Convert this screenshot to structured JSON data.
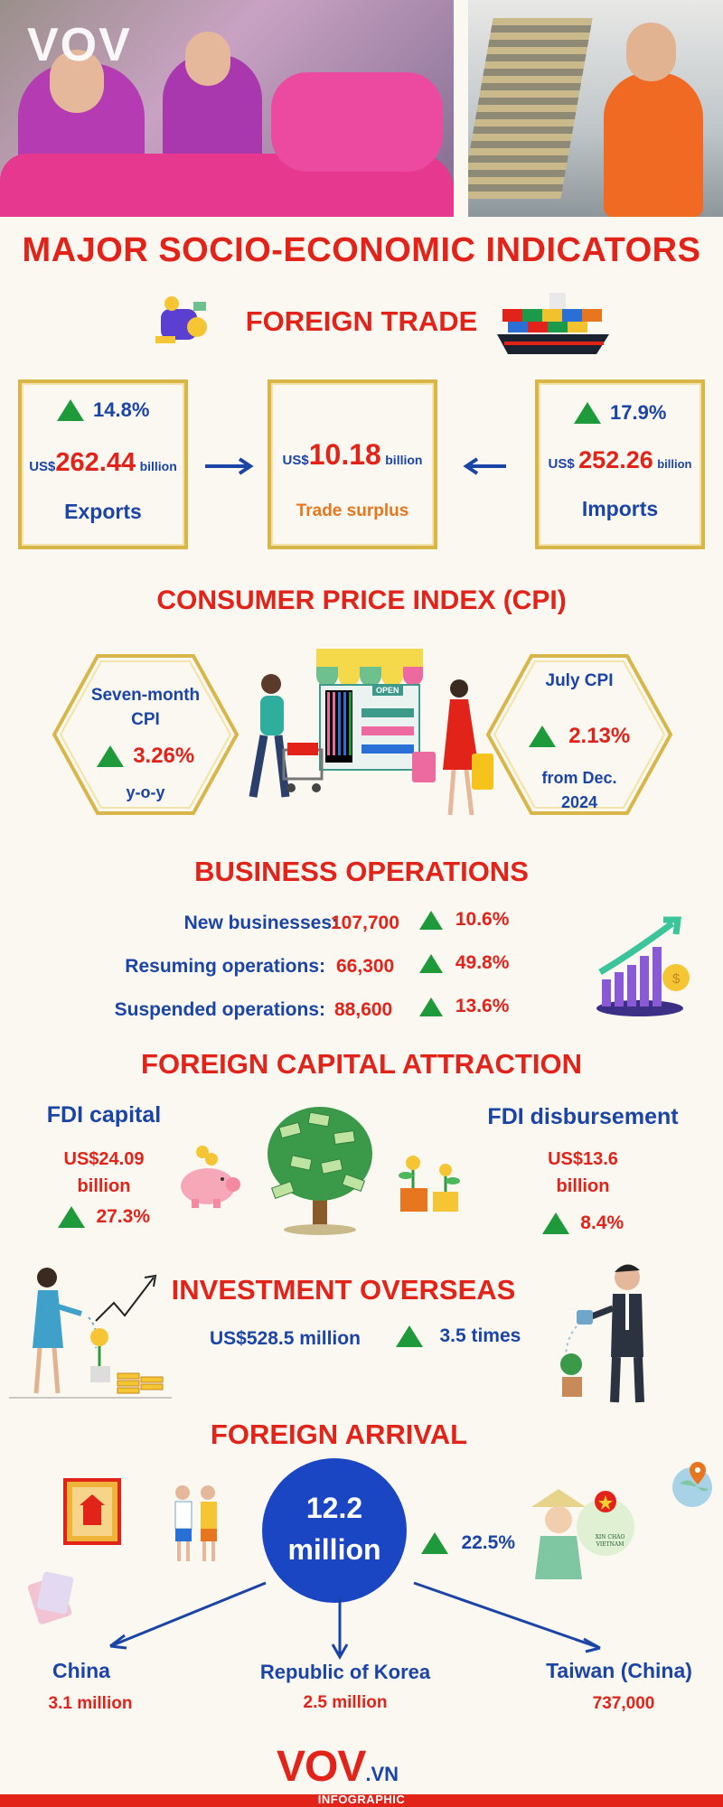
{
  "header": {
    "logo_text": "VOV",
    "title": "MAJOR SOCIO-ECONOMIC INDICATORS"
  },
  "foreign_trade": {
    "title": "FOREIGN TRADE",
    "exports": {
      "change": "14.8%",
      "prefix": "US$",
      "value": "262.44",
      "unit": "billion",
      "label": "Exports"
    },
    "surplus": {
      "prefix": "US$",
      "value": "10.18",
      "unit": "billion",
      "label": "Trade surplus"
    },
    "imports": {
      "change": "17.9%",
      "prefix": "US$",
      "value": "252.26",
      "unit": "billion",
      "label": "Imports"
    }
  },
  "cpi": {
    "title": "CONSUMER PRICE INDEX (CPI)",
    "seven_month": {
      "label_line1": "Seven-month",
      "label_line2": "CPI",
      "change": "3.26%",
      "suffix": "y-o-y"
    },
    "july": {
      "label": "July CPI",
      "change": "2.13%",
      "suffix_line1": "from Dec.",
      "suffix_line2": "2024"
    },
    "shop_sign": "OPEN"
  },
  "business": {
    "title": "BUSINESS OPERATIONS",
    "rows": [
      {
        "label": "New businesses:",
        "value": "107,700",
        "change": "10.6%"
      },
      {
        "label": "Resuming operations:",
        "value": "66,300",
        "change": "49.8%"
      },
      {
        "label": "Suspended operations:",
        "value": "88,600",
        "change": "13.6%"
      }
    ]
  },
  "fdi": {
    "title": "FOREIGN CAPITAL ATTRACTION",
    "capital": {
      "label": "FDI capital",
      "value_line1": "US$24.09",
      "value_line2": "billion",
      "change": "27.3%"
    },
    "disbursement": {
      "label": "FDI disbursement",
      "value_line1": "US$13.6",
      "value_line2": "billion",
      "change": "8.4%"
    }
  },
  "overseas": {
    "title": "INVESTMENT OVERSEAS",
    "value": "US$528.5 million",
    "change": "3.5 times"
  },
  "arrival": {
    "title": "FOREIGN ARRIVAL",
    "total_line1": "12.2",
    "total_line2": "million",
    "change": "22.5%",
    "greeting_line1": "XIN CHÀO",
    "greeting_line2": "VIETNAM",
    "markets": [
      {
        "name": "China",
        "value": "3.1 million"
      },
      {
        "name": "Republic of Korea",
        "value": "2.5 million"
      },
      {
        "name": "Taiwan (China)",
        "value": "737,000"
      }
    ]
  },
  "footer": {
    "logo_main": "VOV",
    "logo_suffix": ".VN",
    "tag": "INFOGRAPHIC"
  },
  "colors": {
    "red": "#e2231a",
    "blue": "#1a44a6",
    "green": "#1f9a3a",
    "gold": "#d9b64a",
    "orange": "#e8761e"
  }
}
